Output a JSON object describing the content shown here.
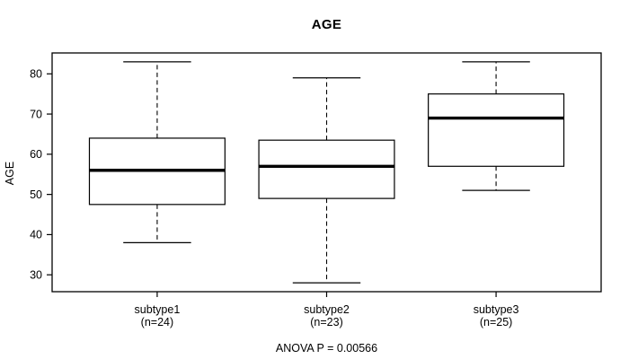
{
  "figure": {
    "background_color": "#ffffff",
    "line_color": "#000000",
    "box_fill_color": "#ffffff"
  },
  "chart_data": {
    "type": "boxplot",
    "title": "AGE",
    "xlabel": "",
    "ylabel": "AGE",
    "ylim": [
      25.8,
      85.2
    ],
    "yticks": [
      30,
      40,
      50,
      60,
      70,
      80
    ],
    "grid": false,
    "legend": "none",
    "annotation": "ANOVA P = 0.00566",
    "groups": [
      {
        "label": "subtype1",
        "sublabel": "(n=24)",
        "n": 24,
        "min": 38,
        "q1": 47.5,
        "median": 56,
        "q3": 64,
        "max": 83
      },
      {
        "label": "subtype2",
        "sublabel": "(n=23)",
        "n": 23,
        "min": 28,
        "q1": 49,
        "median": 57,
        "q3": 63.5,
        "max": 79
      },
      {
        "label": "subtype3",
        "sublabel": "(n=25)",
        "n": 25,
        "min": 51,
        "q1": 57,
        "median": 69,
        "q3": 75,
        "max": 83
      }
    ]
  }
}
